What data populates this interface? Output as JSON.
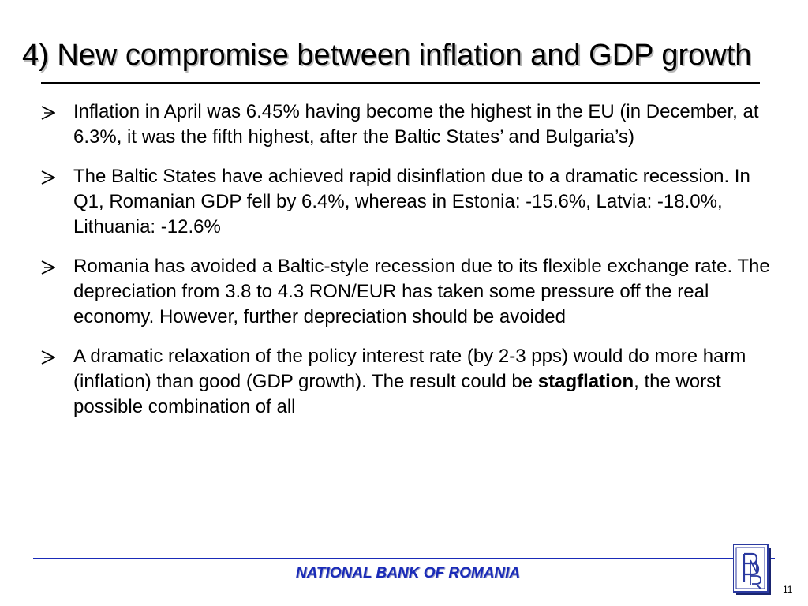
{
  "slide": {
    "title": "4) New compromise between inflation and GDP growth",
    "bullets": [
      {
        "text": "Inflation in April was 6.45% having become the highest in the EU (in December, at 6.3%, it was the fifth highest, after the Baltic States’ and Bulgaria’s)"
      },
      {
        "text": "The Baltic States have achieved rapid disinflation due to a dramatic recession. In Q1, Romanian GDP fell by 6.4%, whereas in Estonia: -15.6%, Latvia: -18.0%, Lithuania: -12.6%"
      },
      {
        "text": "Romania has avoided a Baltic-style recession due to its flexible exchange rate. The depreciation from 3.8 to 4.3 RON/EUR has taken some pressure off the real economy. However, further depreciation should be avoided"
      },
      {
        "text_before": "A dramatic relaxation of the policy interest rate (by 2-3 pps) would do more harm (inflation) than good (GDP growth). The result could be ",
        "bold": "stagflation",
        "text_after": ", the worst possible combination of all"
      }
    ]
  },
  "footer": {
    "bank_name": "NATIONAL BANK OF ROMANIA",
    "page_number": "11"
  },
  "icons": {
    "bullet": "arrowhead-bullet-icon",
    "logo": "bnr-monogram-logo"
  },
  "colors": {
    "footer_blue": "#1a2bb8",
    "logo_blue": "#2b3aa0"
  }
}
